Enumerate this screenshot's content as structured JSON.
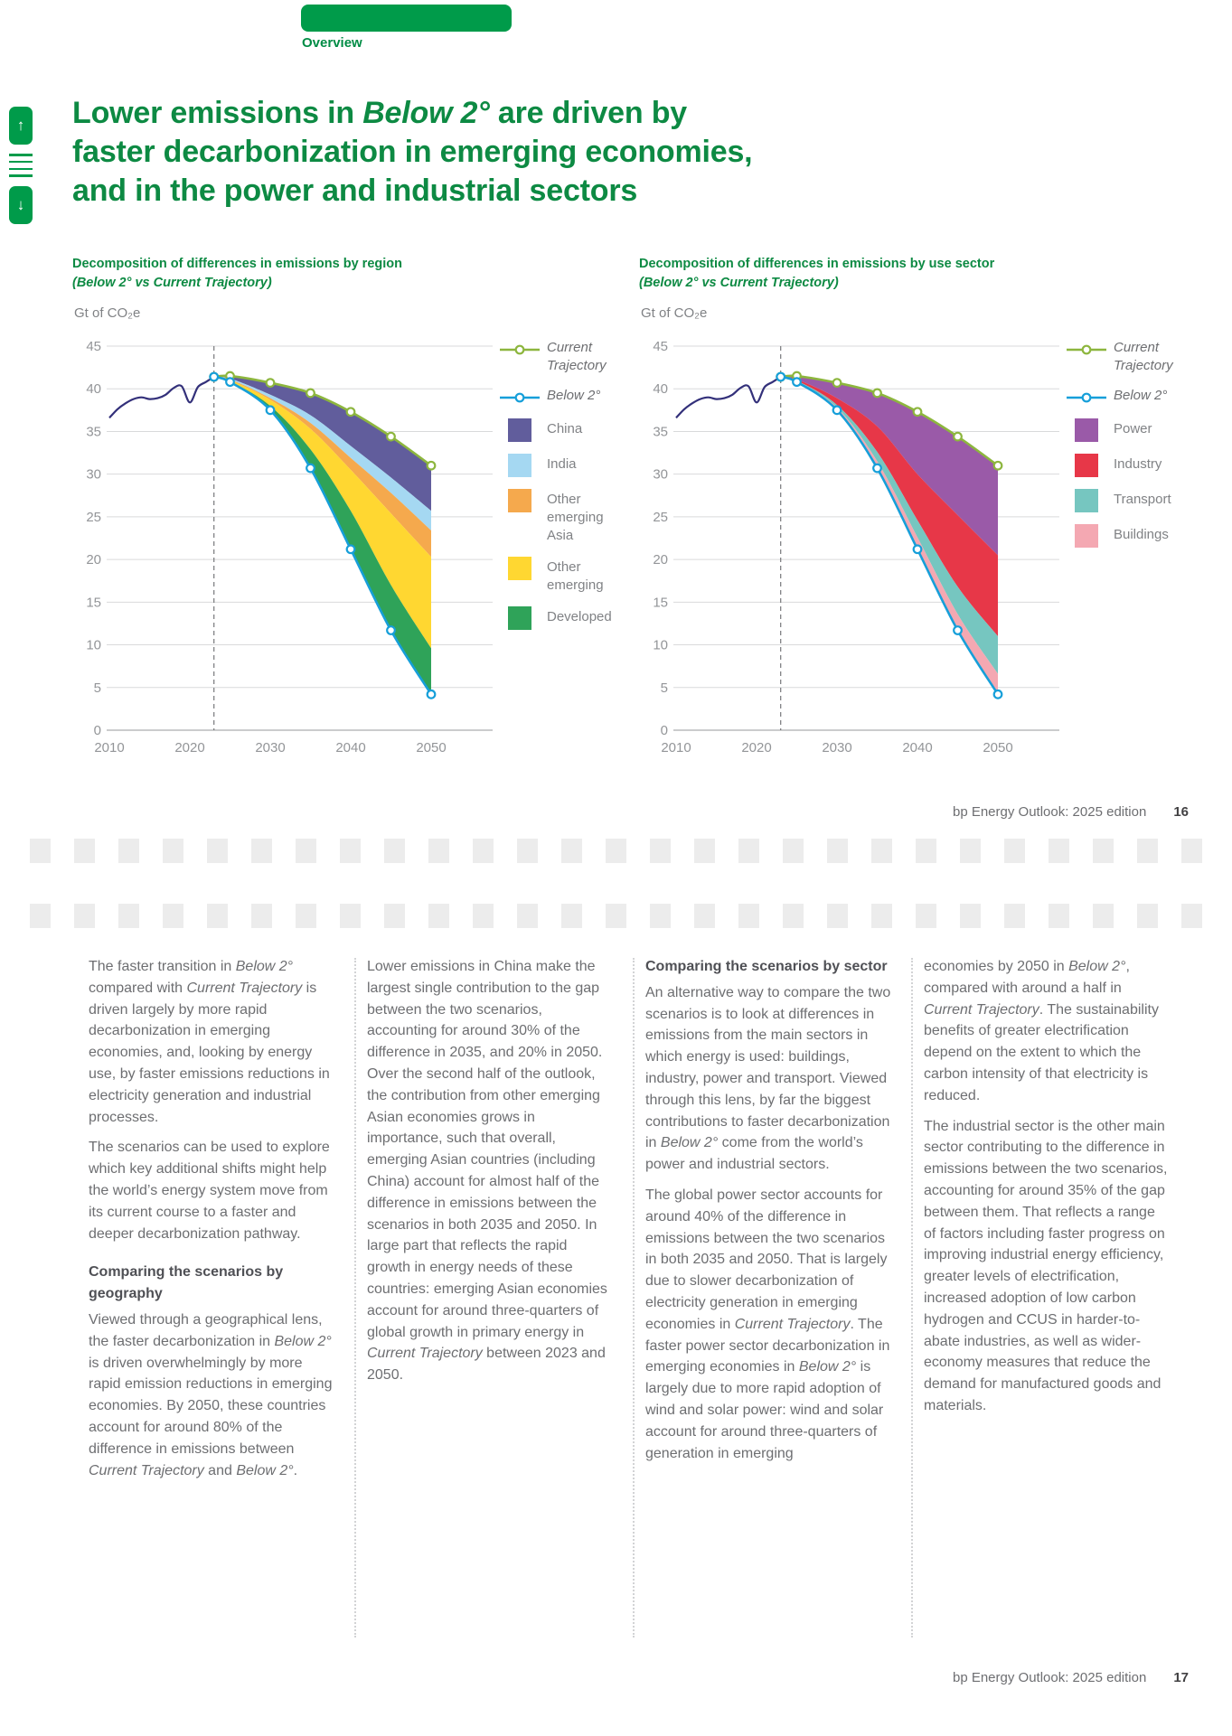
{
  "tab": {
    "label": "Overview"
  },
  "title": {
    "html": "Lower emissions in <i>Below 2°</i> are driven by<br>faster decarbonization in emerging economies,<br>and in the power and industrial sectors"
  },
  "nav": {
    "up_icon": "↑",
    "menu_icon": "hamburger-lines",
    "down_icon": "↓"
  },
  "colors": {
    "brand_green": "#009b4a",
    "heading_green": "#0d8a43",
    "body_gray": "#6d6e71",
    "axis_gray": "#939598",
    "grid_gray": "#d9dadb"
  },
  "footer16": {
    "text": "bp Energy Outlook: 2025 edition",
    "page": "16"
  },
  "footer17": {
    "text": "bp Energy Outlook: 2025 edition",
    "page": "17"
  },
  "page_break": {
    "squares_per_row": 27,
    "rows": 2
  },
  "chart_data": [
    {
      "type": "area",
      "title": "Decomposition of differences in emissions by region",
      "subtitle": "(Below 2° vs Current Trajectory)",
      "unit_label": "Gt of CO₂e",
      "xlim": [
        2010,
        2050
      ],
      "ylim": [
        0,
        45
      ],
      "y_tick_step": 5,
      "x_ticks": [
        2010,
        2020,
        2030,
        2040,
        2050
      ],
      "grid": true,
      "legend_position": "right",
      "divider_year": 2023,
      "history": {
        "name": "History",
        "color": "#33307a",
        "x": [
          2010,
          2011,
          2012,
          2013,
          2014,
          2015,
          2016,
          2017,
          2018,
          2019,
          2020,
          2021,
          2022,
          2023
        ],
        "y": [
          36.6,
          37.6,
          38.3,
          38.8,
          39.0,
          38.8,
          38.9,
          39.3,
          40.1,
          40.3,
          38.4,
          40.2,
          40.8,
          41.4
        ]
      },
      "x_scenario": [
        2023,
        2025,
        2030,
        2035,
        2040,
        2045,
        2050
      ],
      "lines": [
        {
          "name": "Current Trajectory",
          "color": "#8db63e",
          "values": [
            41.4,
            41.5,
            40.7,
            39.5,
            37.3,
            34.4,
            31.0
          ]
        },
        {
          "name": "Below 2°",
          "color": "#169fd9",
          "values": [
            41.4,
            40.8,
            37.5,
            30.7,
            21.2,
            11.7,
            4.2
          ]
        }
      ],
      "bands": [
        {
          "name": "China",
          "color": "#615d9c",
          "bottom": [
            41.4,
            41.2,
            39.3,
            36.9,
            33.3,
            29.6,
            25.7
          ]
        },
        {
          "name": "India",
          "color": "#a5d8f2",
          "bottom": [
            41.4,
            41.1,
            38.9,
            36.0,
            31.9,
            27.8,
            23.4
          ]
        },
        {
          "name": "Other emerging Asia",
          "color": "#f5a94d",
          "bottom": [
            41.4,
            41.0,
            38.7,
            35.3,
            30.5,
            25.4,
            20.3
          ]
        },
        {
          "name": "Other emerging",
          "color": "#ffd731",
          "bottom": [
            41.4,
            40.9,
            38.0,
            32.9,
            25.7,
            17.0,
            9.6
          ]
        },
        {
          "name": "Developed",
          "color": "#2fa359",
          "bottom": [
            41.4,
            40.8,
            37.5,
            30.7,
            21.2,
            11.7,
            4.2
          ]
        }
      ]
    },
    {
      "type": "area",
      "title": "Decomposition of differences in emissions by use sector",
      "subtitle": "(Below 2° vs Current Trajectory)",
      "unit_label": "Gt of CO₂e",
      "xlim": [
        2010,
        2050
      ],
      "ylim": [
        0,
        45
      ],
      "y_tick_step": 5,
      "x_ticks": [
        2010,
        2020,
        2030,
        2040,
        2050
      ],
      "grid": true,
      "legend_position": "right",
      "divider_year": 2023,
      "history": {
        "name": "History",
        "color": "#33307a",
        "x": [
          2010,
          2011,
          2012,
          2013,
          2014,
          2015,
          2016,
          2017,
          2018,
          2019,
          2020,
          2021,
          2022,
          2023
        ],
        "y": [
          36.6,
          37.6,
          38.3,
          38.8,
          39.0,
          38.8,
          38.9,
          39.3,
          40.1,
          40.3,
          38.4,
          40.2,
          40.8,
          41.4
        ]
      },
      "x_scenario": [
        2023,
        2025,
        2030,
        2035,
        2040,
        2045,
        2050
      ],
      "lines": [
        {
          "name": "Current Trajectory",
          "color": "#8db63e",
          "values": [
            41.4,
            41.5,
            40.7,
            39.5,
            37.3,
            34.4,
            31.0
          ]
        },
        {
          "name": "Below 2°",
          "color": "#169fd9",
          "values": [
            41.4,
            40.8,
            37.5,
            30.7,
            21.2,
            11.7,
            4.2
          ]
        }
      ],
      "bands": [
        {
          "name": "Power",
          "color": "#9a5aa8",
          "bottom": [
            41.4,
            41.1,
            38.9,
            35.6,
            30.0,
            25.2,
            20.5
          ]
        },
        {
          "name": "Industry",
          "color": "#e73748",
          "bottom": [
            41.4,
            40.95,
            38.1,
            32.6,
            24.6,
            16.8,
            11.0
          ]
        },
        {
          "name": "Transport",
          "color": "#76c6c0",
          "bottom": [
            41.4,
            40.87,
            37.8,
            31.5,
            22.6,
            13.6,
            6.6
          ]
        },
        {
          "name": "Buildings",
          "color": "#f4a8b2",
          "bottom": [
            41.4,
            40.8,
            37.5,
            30.7,
            21.2,
            11.7,
            4.2
          ]
        }
      ]
    }
  ],
  "columns": [
    {
      "blocks": [
        {
          "t": "p",
          "html": "The faster transition in <i>Below 2°</i> compared with <i>Current Trajectory</i> is driven largely by more rapid decarbonization in emerging economies, and, looking by energy use, by faster emissions reductions in electricity generation and industrial processes."
        },
        {
          "t": "p",
          "html": "The scenarios can be used to explore which key additional shifts might help the world’s energy system move from its current course to a faster and deeper decarbonization pathway."
        },
        {
          "t": "h",
          "html": "Comparing the scenarios by geography"
        },
        {
          "t": "p",
          "html": "Viewed through a geographical lens, the faster decarbonization in <i>Below 2°</i> is driven overwhelmingly by more rapid emission reductions in emerging economies. By 2050, these countries account for around 80% of the difference in emissions between <i>Current Trajectory</i> and <i>Below 2°</i>."
        }
      ]
    },
    {
      "blocks": [
        {
          "t": "p",
          "html": "Lower emissions in China make the largest single contribution to the gap between the two scenarios, accounting for around 30% of the difference in 2035, and 20% in 2050. Over the second half of the outlook, the contribution from other emerging Asian economies grows in importance, such that overall, emerging Asian countries (including China) account for almost half of the difference in emissions between the scenarios in both 2035 and 2050. In large part that reflects the rapid growth in energy needs of these countries: emerging Asian economies account for around three-quarters of global growth in primary energy in <i>Current Trajectory</i> between 2023 and 2050."
        }
      ]
    },
    {
      "blocks": [
        {
          "t": "h",
          "html": "Comparing the scenarios by sector"
        },
        {
          "t": "p",
          "html": "An alternative way to compare the two scenarios is to look at differences in emissions from the main sectors in which energy is used: buildings, industry, power and transport. Viewed through this lens, by far the biggest contributions to faster decarbonization in <i>Below 2°</i> come from the world’s power and industrial sectors."
        },
        {
          "t": "p",
          "html": "The global power sector accounts for around 40% of the difference in emissions between the two scenarios in both 2035 and 2050. That is largely due to slower decarbonization of electricity generation in emerging economies in <i>Current Trajectory</i>. The faster power sector decarbonization in emerging economies in <i>Below 2°</i> is largely due to more rapid adoption of wind and solar power: wind and solar account for around three-quarters of generation in emerging"
        }
      ]
    },
    {
      "blocks": [
        {
          "t": "p",
          "html": "economies by 2050 in <i>Below 2°</i>, compared with around a half in <i>Current Trajectory</i>. The sustainability benefits of greater electrification depend on the extent to which the carbon intensity of that electricity is reduced."
        },
        {
          "t": "p",
          "html": "The industrial sector is the other main sector contributing to the difference in emissions between the two scenarios, accounting for around 35% of the gap between them. That reflects a range of factors including faster progress on improving industrial energy efficiency, greater levels of electrification, increased adoption of low carbon hydrogen and CCUS in harder-to-abate industries, as well as wider-economy measures that reduce the demand for manufactured goods and materials."
        }
      ]
    }
  ]
}
